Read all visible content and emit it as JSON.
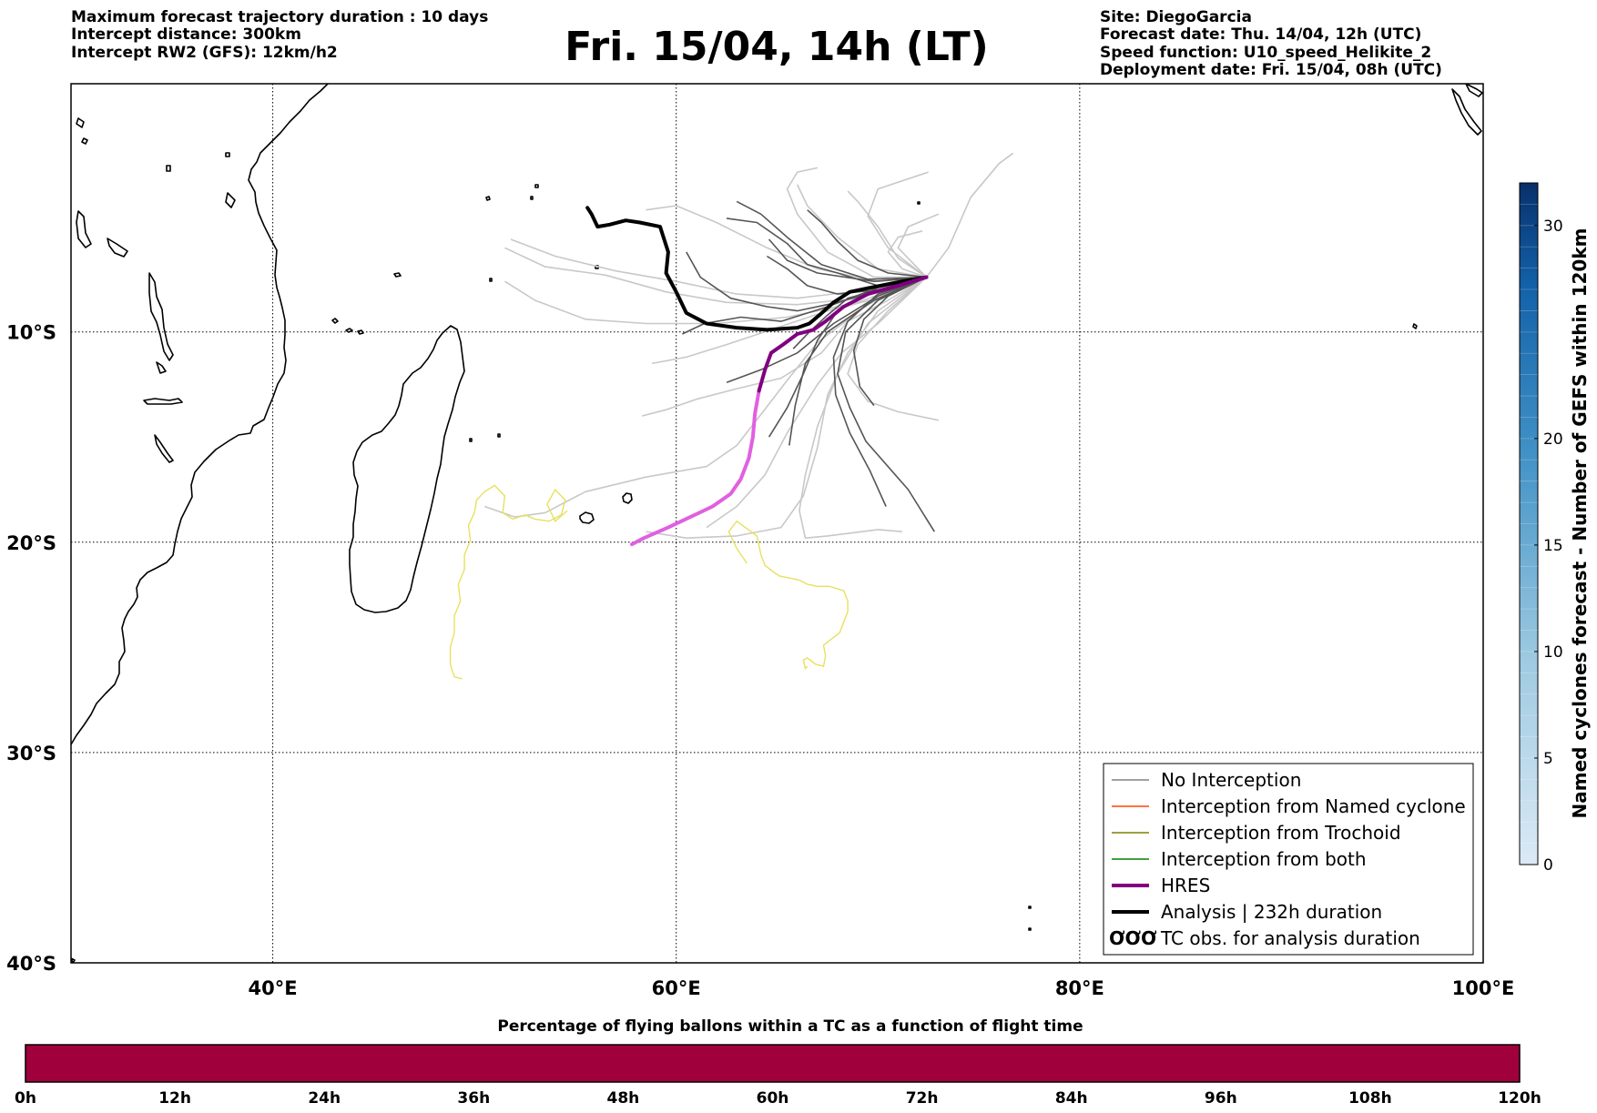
{
  "header": {
    "left_lines": [
      "Maximum forecast trajectory duration : 10 days",
      "Intercept distance: 300km",
      "Intercept RW2 (GFS):  12km/h2"
    ],
    "title": "Fri. 15/04, 14h (LT)",
    "right_lines": [
      "Site: DiegoGarcia",
      "Forecast date: Thu. 14/04, 12h (UTC)",
      "Speed function: U10_speed_Helikite_2",
      "Deployment date: Fri. 15/04, 08h (UTC)"
    ]
  },
  "map": {
    "lon_range": [
      30,
      100
    ],
    "lat_range": [
      -40,
      1.8
    ],
    "lat_ticks": [
      {
        "value": -10,
        "label": "10°S"
      },
      {
        "value": -20,
        "label": "20°S"
      },
      {
        "value": -30,
        "label": "30°S"
      },
      {
        "value": -40,
        "label": "40°S"
      }
    ],
    "lon_ticks": [
      {
        "value": 40,
        "label": "40°E"
      },
      {
        "value": 60,
        "label": "60°E"
      },
      {
        "value": 80,
        "label": "80°E"
      },
      {
        "value": 100,
        "label": "100°E"
      }
    ],
    "colors": {
      "no_interception_dark": "#555555",
      "no_interception_light": "#c8c8c8",
      "hres": "#800080",
      "hres_light": "#e060e0",
      "analysis": "#000000",
      "tc_obs": "#e8e060"
    },
    "trajectories_dark": [
      [
        [
          72.4,
          -7.4
        ],
        [
          70.5,
          -7.9
        ],
        [
          68.5,
          -8.4
        ],
        [
          67.5,
          -9.2
        ],
        [
          66.6,
          -10.0
        ],
        [
          65.8,
          -10.8
        ]
      ],
      [
        [
          72.4,
          -7.4
        ],
        [
          70.0,
          -8.0
        ],
        [
          68.0,
          -9.0
        ],
        [
          67.0,
          -10.4
        ],
        [
          66.3,
          -12.0
        ],
        [
          65.5,
          -13.6
        ],
        [
          64.6,
          -15.0
        ]
      ],
      [
        [
          72.4,
          -7.4
        ],
        [
          70.0,
          -8.2
        ],
        [
          68.5,
          -9.5
        ],
        [
          67.8,
          -11.2
        ],
        [
          67.9,
          -13.0
        ],
        [
          68.6,
          -14.8
        ],
        [
          69.6,
          -16.6
        ],
        [
          70.4,
          -18.3
        ]
      ],
      [
        [
          72.4,
          -7.4
        ],
        [
          70.0,
          -8.5
        ],
        [
          68.4,
          -10.0
        ],
        [
          68.0,
          -12.0
        ],
        [
          68.6,
          -13.6
        ],
        [
          69.4,
          -15.2
        ],
        [
          71.5,
          -17.5
        ],
        [
          72.8,
          -19.5
        ]
      ],
      [
        [
          72.4,
          -7.4
        ],
        [
          70.5,
          -8.3
        ],
        [
          69.3,
          -9.4
        ],
        [
          68.8,
          -10.9
        ],
        [
          69.1,
          -12.6
        ],
        [
          69.8,
          -13.5
        ]
      ],
      [
        [
          72.4,
          -7.4
        ],
        [
          70.0,
          -7.8
        ],
        [
          68.0,
          -7.2
        ],
        [
          66.5,
          -6.8
        ],
        [
          65.5,
          -5.8
        ],
        [
          64.0,
          -4.8
        ],
        [
          62.5,
          -4.6
        ]
      ],
      [
        [
          72.4,
          -7.4
        ],
        [
          69.5,
          -7.5
        ],
        [
          67.2,
          -6.8
        ],
        [
          65.5,
          -5.5
        ],
        [
          64.2,
          -4.4
        ],
        [
          63.0,
          -3.8
        ]
      ],
      [
        [
          72.4,
          -7.4
        ],
        [
          70.0,
          -7.9
        ],
        [
          67.5,
          -8.8
        ],
        [
          65.2,
          -9.5
        ],
        [
          63.2,
          -9.3
        ],
        [
          61.4,
          -9.6
        ],
        [
          60.3,
          -10.1
        ]
      ],
      [
        [
          72.4,
          -7.4
        ],
        [
          70.2,
          -8.0
        ],
        [
          68.0,
          -8.6
        ],
        [
          66.0,
          -9.0
        ],
        [
          64.5,
          -8.8
        ],
        [
          62.7,
          -8.4
        ],
        [
          61.2,
          -7.4
        ],
        [
          60.5,
          -6.2
        ]
      ],
      [
        [
          72.4,
          -7.4
        ],
        [
          69.8,
          -7.6
        ],
        [
          67.0,
          -7.2
        ],
        [
          65.5,
          -6.6
        ],
        [
          64.6,
          -5.6
        ]
      ],
      [
        [
          72.4,
          -7.4
        ],
        [
          70.5,
          -7.2
        ],
        [
          69.0,
          -6.6
        ],
        [
          68.0,
          -5.7
        ],
        [
          67.2,
          -4.8
        ],
        [
          66.5,
          -4.2
        ]
      ],
      [
        [
          72.4,
          -7.4
        ],
        [
          70.0,
          -8.3
        ],
        [
          67.8,
          -9.6
        ],
        [
          66.0,
          -11.0
        ],
        [
          64.2,
          -11.8
        ],
        [
          62.5,
          -12.4
        ]
      ],
      [
        [
          72.4,
          -7.4
        ],
        [
          69.8,
          -8.5
        ],
        [
          67.5,
          -10.0
        ],
        [
          66.4,
          -11.5
        ],
        [
          65.9,
          -13.5
        ],
        [
          65.6,
          -15.4
        ]
      ],
      [
        [
          72.4,
          -7.4
        ],
        [
          70.0,
          -8.0
        ],
        [
          68.0,
          -8.2
        ],
        [
          66.5,
          -7.8
        ],
        [
          65.5,
          -7.0
        ],
        [
          64.5,
          -6.4
        ]
      ]
    ],
    "trajectories_light": [
      [
        [
          72.4,
          -7.4
        ],
        [
          71.0,
          -6.0
        ],
        [
          71.5,
          -5.0
        ],
        [
          73.0,
          -4.4
        ]
      ],
      [
        [
          72.4,
          -7.4
        ],
        [
          73.5,
          -6.0
        ],
        [
          74.6,
          -3.6
        ],
        [
          76.0,
          -2.0
        ],
        [
          76.7,
          -1.5
        ]
      ],
      [
        [
          72.4,
          -7.4
        ],
        [
          71.0,
          -6.5
        ],
        [
          70.0,
          -5.0
        ],
        [
          69.0,
          -3.8
        ],
        [
          68.5,
          -3.3
        ]
      ],
      [
        [
          72.4,
          -7.4
        ],
        [
          70.5,
          -6.0
        ],
        [
          69.5,
          -4.5
        ],
        [
          70.0,
          -3.2
        ],
        [
          72.5,
          -2.4
        ]
      ],
      [
        [
          72.4,
          -7.4
        ],
        [
          70.0,
          -7.0
        ],
        [
          68.0,
          -5.5
        ],
        [
          66.5,
          -4.0
        ],
        [
          66.0,
          -3.0
        ]
      ],
      [
        [
          72.4,
          -7.4
        ],
        [
          70.0,
          -7.6
        ],
        [
          67.0,
          -7.0
        ],
        [
          64.5,
          -6.0
        ],
        [
          62.0,
          -4.8
        ],
        [
          60.0,
          -4.0
        ],
        [
          58.5,
          -4.2
        ]
      ],
      [
        [
          72.4,
          -7.4
        ],
        [
          69.5,
          -8.0
        ],
        [
          66.0,
          -8.4
        ],
        [
          63.0,
          -8.2
        ],
        [
          60.0,
          -7.6
        ],
        [
          57.0,
          -7.1
        ],
        [
          54.0,
          -6.4
        ],
        [
          51.8,
          -5.6
        ]
      ],
      [
        [
          72.4,
          -7.4
        ],
        [
          69.0,
          -8.4
        ],
        [
          66.0,
          -8.7
        ],
        [
          62.5,
          -8.6
        ],
        [
          59.5,
          -8.1
        ],
        [
          56.5,
          -7.3
        ],
        [
          53.5,
          -6.9
        ],
        [
          51.5,
          -6.0
        ]
      ],
      [
        [
          72.4,
          -7.4
        ],
        [
          69.0,
          -8.6
        ],
        [
          65.5,
          -9.3
        ],
        [
          62.0,
          -9.6
        ],
        [
          58.5,
          -9.6
        ],
        [
          55.5,
          -9.4
        ],
        [
          53.0,
          -8.5
        ],
        [
          51.5,
          -7.6
        ]
      ],
      [
        [
          72.4,
          -7.4
        ],
        [
          69.5,
          -8.7
        ],
        [
          67.0,
          -10.5
        ],
        [
          65.5,
          -12.3
        ],
        [
          64.3,
          -13.8
        ],
        [
          63.0,
          -15.4
        ],
        [
          61.5,
          -16.4
        ],
        [
          58.5,
          -16.9
        ],
        [
          55.5,
          -17.6
        ],
        [
          53.5,
          -18.6
        ],
        [
          52.0,
          -18.8
        ],
        [
          50.5,
          -18.3
        ]
      ],
      [
        [
          72.4,
          -7.4
        ],
        [
          70.0,
          -9.0
        ],
        [
          68.5,
          -11.0
        ],
        [
          67.5,
          -13.0
        ],
        [
          67.0,
          -15.5
        ],
        [
          66.3,
          -17.8
        ],
        [
          65.2,
          -19.3
        ],
        [
          63.0,
          -19.7
        ],
        [
          60.5,
          -19.8
        ],
        [
          58.5,
          -19.5
        ]
      ],
      [
        [
          72.4,
          -7.4
        ],
        [
          69.5,
          -9.6
        ],
        [
          68.0,
          -12.0
        ],
        [
          67.0,
          -14.5
        ],
        [
          66.4,
          -16.8
        ],
        [
          66.1,
          -18.5
        ],
        [
          66.4,
          -19.8
        ],
        [
          67.5,
          -19.7
        ],
        [
          70.0,
          -19.4
        ],
        [
          71.2,
          -19.5
        ]
      ],
      [
        [
          72.4,
          -7.4
        ],
        [
          70.0,
          -9.6
        ],
        [
          68.2,
          -11.0
        ],
        [
          67.0,
          -12.5
        ],
        [
          65.5,
          -14.8
        ],
        [
          64.4,
          -16.8
        ],
        [
          63.0,
          -18.3
        ],
        [
          61.5,
          -19.3
        ]
      ],
      [
        [
          72.4,
          -7.4
        ],
        [
          70.5,
          -9.0
        ],
        [
          69.0,
          -10.6
        ],
        [
          68.5,
          -12.0
        ],
        [
          69.5,
          -13.3
        ],
        [
          71.0,
          -13.8
        ],
        [
          73.0,
          -14.2
        ]
      ],
      [
        [
          72.4,
          -7.4
        ],
        [
          70.5,
          -8.5
        ],
        [
          68.5,
          -9.5
        ],
        [
          67.2,
          -11.0
        ],
        [
          65.2,
          -12.2
        ],
        [
          63.0,
          -12.7
        ],
        [
          61.0,
          -13.2
        ],
        [
          59.5,
          -13.7
        ],
        [
          58.3,
          -14.0
        ]
      ],
      [
        [
          72.4,
          -7.4
        ],
        [
          70.0,
          -8.4
        ],
        [
          67.5,
          -9.0
        ],
        [
          65.0,
          -9.8
        ],
        [
          62.5,
          -10.6
        ],
        [
          60.5,
          -11.2
        ],
        [
          58.8,
          -11.5
        ]
      ],
      [
        [
          72.4,
          -7.4
        ],
        [
          71.2,
          -7.0
        ],
        [
          70.5,
          -6.2
        ],
        [
          71.0,
          -5.5
        ],
        [
          72.2,
          -5.2
        ]
      ],
      [
        [
          72.4,
          -7.4
        ],
        [
          69.8,
          -7.4
        ],
        [
          67.5,
          -6.2
        ],
        [
          66.0,
          -4.4
        ],
        [
          65.5,
          -3.2
        ],
        [
          66.0,
          -2.4
        ],
        [
          67.0,
          -2.2
        ]
      ]
    ],
    "analysis_track": [
      [
        72.4,
        -7.4
      ],
      [
        71.2,
        -7.6
      ],
      [
        69.6,
        -7.9
      ],
      [
        68.6,
        -8.1
      ],
      [
        67.8,
        -8.6
      ],
      [
        67.1,
        -9.2
      ],
      [
        66.6,
        -9.6
      ],
      [
        66.0,
        -9.8
      ],
      [
        64.5,
        -9.9
      ],
      [
        63.0,
        -9.8
      ],
      [
        61.5,
        -9.6
      ],
      [
        60.5,
        -9.1
      ],
      [
        60.0,
        -8.1
      ],
      [
        59.5,
        -7.2
      ],
      [
        59.6,
        -6.2
      ],
      [
        59.2,
        -5.0
      ],
      [
        58.2,
        -4.8
      ],
      [
        57.5,
        -4.7
      ],
      [
        56.7,
        -4.9
      ],
      [
        56.1,
        -5.0
      ],
      [
        55.8,
        -4.4
      ],
      [
        55.6,
        -4.1
      ]
    ],
    "hres_track_dark": [
      [
        72.4,
        -7.4
      ],
      [
        71.0,
        -7.8
      ],
      [
        69.5,
        -8.2
      ],
      [
        68.3,
        -8.8
      ],
      [
        67.4,
        -9.5
      ],
      [
        66.8,
        -9.9
      ],
      [
        66.0,
        -10.1
      ],
      [
        65.3,
        -10.6
      ],
      [
        64.7,
        -11.0
      ],
      [
        64.4,
        -11.8
      ],
      [
        64.1,
        -12.8
      ]
    ],
    "hres_track_light": [
      [
        64.1,
        -12.8
      ],
      [
        63.9,
        -13.9
      ],
      [
        63.8,
        -15.0
      ],
      [
        63.6,
        -16.0
      ],
      [
        63.2,
        -17.0
      ],
      [
        62.7,
        -17.7
      ],
      [
        61.8,
        -18.3
      ],
      [
        60.7,
        -18.8
      ],
      [
        59.6,
        -19.3
      ],
      [
        58.4,
        -19.8
      ],
      [
        57.8,
        -20.1
      ]
    ],
    "tc_obs_west": [
      [
        49.4,
        -26.5
      ],
      [
        49.0,
        -26.4
      ],
      [
        48.8,
        -25.8
      ],
      [
        48.8,
        -25.0
      ],
      [
        49.0,
        -24.3
      ],
      [
        49.0,
        -23.5
      ],
      [
        49.3,
        -22.8
      ],
      [
        49.2,
        -22.0
      ],
      [
        49.5,
        -21.3
      ],
      [
        49.5,
        -20.6
      ],
      [
        49.8,
        -19.9
      ],
      [
        49.7,
        -19.2
      ],
      [
        50.0,
        -18.6
      ],
      [
        50.1,
        -18.0
      ],
      [
        50.5,
        -17.6
      ],
      [
        51.0,
        -17.3
      ],
      [
        51.5,
        -17.8
      ],
      [
        51.4,
        -18.6
      ],
      [
        51.9,
        -18.9
      ],
      [
        52.5,
        -18.7
      ],
      [
        53.0,
        -18.9
      ],
      [
        53.7,
        -19.0
      ],
      [
        54.3,
        -18.7
      ],
      [
        54.5,
        -18.0
      ],
      [
        54.0,
        -17.5
      ],
      [
        53.6,
        -18.2
      ],
      [
        54.0,
        -19.0
      ],
      [
        54.6,
        -18.5
      ]
    ],
    "tc_obs_east": [
      [
        63.5,
        -21.0
      ],
      [
        63.0,
        -20.3
      ],
      [
        62.6,
        -19.5
      ],
      [
        63.0,
        -19.0
      ],
      [
        64.0,
        -19.7
      ],
      [
        64.2,
        -20.6
      ],
      [
        64.4,
        -21.1
      ],
      [
        64.8,
        -21.4
      ],
      [
        65.1,
        -21.6
      ],
      [
        65.6,
        -21.7
      ],
      [
        66.1,
        -21.8
      ],
      [
        66.5,
        -22.0
      ],
      [
        67.0,
        -22.1
      ],
      [
        67.6,
        -22.1
      ],
      [
        68.3,
        -22.3
      ],
      [
        68.5,
        -22.8
      ],
      [
        68.5,
        -23.3
      ],
      [
        68.3,
        -23.8
      ],
      [
        68.1,
        -24.3
      ],
      [
        67.7,
        -24.6
      ],
      [
        67.3,
        -24.9
      ],
      [
        67.4,
        -25.4
      ],
      [
        67.3,
        -25.9
      ],
      [
        66.9,
        -25.8
      ],
      [
        66.5,
        -25.5
      ],
      [
        66.3,
        -25.6
      ],
      [
        66.4,
        -26.0
      ],
      [
        66.5,
        -25.9
      ]
    ]
  },
  "legend": {
    "items": [
      {
        "label": "No Interception",
        "color": "#808080",
        "width": 1.5
      },
      {
        "label": "Interception from Named cyclone",
        "color": "#ff4500",
        "width": 1.5
      },
      {
        "label": "Interception from Trochoid",
        "color": "#808000",
        "width": 1.5
      },
      {
        "label": "Interception from both",
        "color": "#008000",
        "width": 1.5
      },
      {
        "label": "HRES",
        "color": "#800080",
        "width": 4
      },
      {
        "label": "Analysis | 232h duration",
        "color": "#000000",
        "width": 4
      }
    ],
    "tc_obs_symbol": "ƠƠƠ",
    "tc_obs_label": "TC obs. for analysis duration"
  },
  "colorbar_right": {
    "label": "Named cyclones forecast - Number of GEFS within 120km",
    "range": [
      0,
      32
    ],
    "ticks": [
      "0",
      "5",
      "10",
      "15",
      "20",
      "30"
    ],
    "tick_values": [
      0,
      5,
      10,
      15,
      20,
      30
    ],
    "color_low": "#dbe9f6",
    "color_high": "#08306b"
  },
  "colorbar_bottom": {
    "title": "Percentage of flying ballons within a TC as a function of flight time",
    "ticks": [
      "0h",
      "12h",
      "24h",
      "36h",
      "48h",
      "60h",
      "72h",
      "84h",
      "96h",
      "108h",
      "120h"
    ],
    "fill_color": "#a0003c"
  }
}
